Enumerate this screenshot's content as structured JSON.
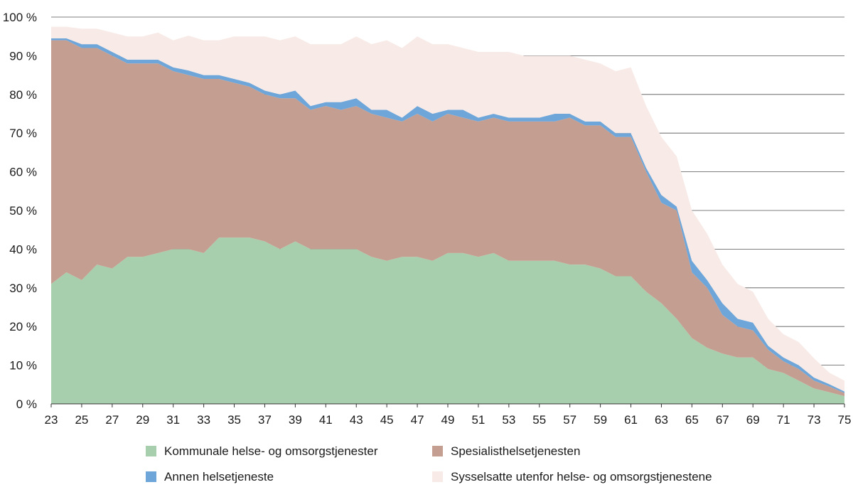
{
  "chart_data": {
    "type": "area",
    "stacked": true,
    "x": [
      23,
      24,
      25,
      26,
      27,
      28,
      29,
      30,
      31,
      32,
      33,
      34,
      35,
      36,
      37,
      38,
      39,
      40,
      41,
      42,
      43,
      44,
      45,
      46,
      47,
      48,
      49,
      50,
      51,
      52,
      53,
      54,
      55,
      56,
      57,
      58,
      59,
      60,
      61,
      62,
      63,
      64,
      65,
      66,
      67,
      68,
      69,
      70,
      71,
      72,
      73,
      74,
      75
    ],
    "series": [
      {
        "name": "Kommunale helse- og omsorgstjenester",
        "color": "#a8cfad",
        "values": [
          31,
          34,
          32,
          36,
          35,
          38,
          38,
          39,
          40,
          40,
          39,
          43,
          43,
          43,
          42,
          40,
          42,
          40,
          40,
          40,
          40,
          38,
          37,
          38,
          38,
          37,
          39,
          39,
          38,
          39,
          37,
          37,
          37,
          37,
          36,
          36,
          35,
          33,
          33,
          29,
          26,
          22,
          17,
          14.5,
          13,
          12,
          12,
          9,
          8,
          6,
          4,
          3,
          2
        ]
      },
      {
        "name": "Spesialisthelsetjenesten",
        "color": "#c49e90",
        "values": [
          63,
          60,
          60,
          56,
          55,
          50,
          50,
          49,
          46,
          45,
          45,
          41,
          40,
          39,
          38,
          39,
          37,
          36,
          37,
          36,
          37,
          37,
          37,
          35,
          37,
          36,
          36,
          35,
          35,
          35,
          36,
          36,
          36,
          36,
          38,
          36,
          37,
          36,
          36,
          31,
          26,
          28,
          17,
          15.5,
          10,
          8,
          7,
          5,
          3,
          3,
          2,
          1.5,
          0.8
        ]
      },
      {
        "name": "Annen helsetjeneste",
        "color": "#6fa6d9",
        "values": [
          0.5,
          0.5,
          1,
          1,
          1,
          1,
          1,
          1,
          1,
          1.2,
          1,
          1,
          1,
          1,
          1,
          1,
          2,
          1,
          1,
          2,
          2,
          1,
          2,
          1,
          2,
          2,
          1,
          2,
          1,
          1,
          1,
          1,
          1,
          2,
          1,
          1,
          1,
          1,
          1,
          1,
          2,
          1,
          3,
          2,
          3,
          2,
          2,
          1,
          1,
          1,
          0.8,
          0.6,
          0.4
        ]
      },
      {
        "name": "Sysselsatte utenfor helse- og omsorgstjenestene",
        "color": "#f8ebe7",
        "values": [
          3,
          3,
          4,
          4,
          5,
          6,
          6,
          7,
          7,
          9,
          9,
          9,
          11,
          12,
          14,
          14,
          14,
          16,
          15,
          15,
          16,
          17,
          18,
          18,
          18,
          18,
          17,
          16,
          17,
          16,
          17,
          16,
          16,
          15,
          15,
          16,
          15,
          16,
          17,
          16,
          15,
          13,
          13,
          12,
          10,
          9,
          8,
          7,
          6,
          6,
          5,
          3,
          2.8
        ]
      }
    ],
    "xticks": [
      "23",
      "25",
      "27",
      "29",
      "31",
      "33",
      "35",
      "37",
      "39",
      "41",
      "43",
      "45",
      "47",
      "49",
      "51",
      "53",
      "55",
      "57",
      "59",
      "61",
      "63",
      "65",
      "67",
      "69",
      "71",
      "73",
      "75"
    ],
    "yticks": [
      "0 %",
      "10 %",
      "20 %",
      "30 %",
      "40 %",
      "50 %",
      "60 %",
      "70 %",
      "80 %",
      "90 %",
      "100 %"
    ],
    "xlim": [
      23,
      75
    ],
    "ylim": [
      0,
      100
    ],
    "grid": true,
    "legend_position": "bottom"
  }
}
